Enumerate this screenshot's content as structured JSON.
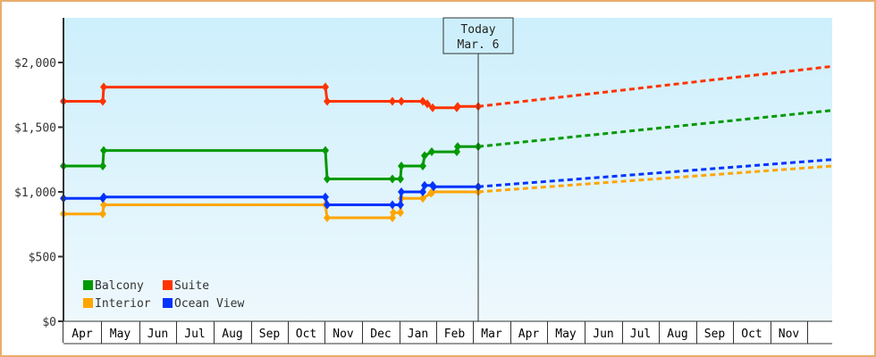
{
  "chart_data": {
    "type": "line",
    "title": "",
    "xlabel": "",
    "ylabel": "",
    "ylim": [
      0,
      2350
    ],
    "yticks": [
      {
        "value": 0,
        "label": "$0"
      },
      {
        "value": 500,
        "label": "$500"
      },
      {
        "value": 1000,
        "label": "$1,000"
      },
      {
        "value": 1500,
        "label": "$1,500"
      },
      {
        "value": 2000,
        "label": "$2,000"
      }
    ],
    "x_months": [
      "Apr",
      "May",
      "Jun",
      "Jul",
      "Aug",
      "Sep",
      "Oct",
      "Nov",
      "Dec",
      "Jan",
      "Feb",
      "Mar",
      "Apr",
      "May",
      "Jun",
      "Jul",
      "Aug",
      "Sep",
      "Oct",
      "Nov",
      ""
    ],
    "grid": false,
    "legend_position": "bottom-left inside",
    "today_marker": {
      "line1": "Today",
      "line2": "Mar. 6"
    },
    "series": [
      {
        "name": "Balcony",
        "color": "#009900",
        "history_step": [
          {
            "x": 71,
            "value": 1200
          },
          {
            "x": 115,
            "value": 1200
          },
          {
            "x": 116,
            "value": 1320
          },
          {
            "x": 364,
            "value": 1320
          },
          {
            "x": 366,
            "value": 1100
          },
          {
            "x": 439,
            "value": 1100
          },
          {
            "x": 448,
            "value": 1100
          },
          {
            "x": 449,
            "value": 1200
          },
          {
            "x": 473,
            "value": 1200
          },
          {
            "x": 475,
            "value": 1280
          },
          {
            "x": 483,
            "value": 1310
          },
          {
            "x": 511,
            "value": 1310
          },
          {
            "x": 512,
            "value": 1350
          },
          {
            "x": 535,
            "value": 1350
          }
        ],
        "forecast": [
          {
            "x": 535,
            "value": 1350
          },
          {
            "x": 931,
            "value": 1630
          }
        ]
      },
      {
        "name": "Suite",
        "color": "#ff3300",
        "history_step": [
          {
            "x": 71,
            "value": 1700
          },
          {
            "x": 115,
            "value": 1700
          },
          {
            "x": 116,
            "value": 1810
          },
          {
            "x": 364,
            "value": 1810
          },
          {
            "x": 366,
            "value": 1700
          },
          {
            "x": 439,
            "value": 1700
          },
          {
            "x": 449,
            "value": 1700
          },
          {
            "x": 473,
            "value": 1700
          },
          {
            "x": 478,
            "value": 1680
          },
          {
            "x": 484,
            "value": 1650
          },
          {
            "x": 511,
            "value": 1650
          },
          {
            "x": 512,
            "value": 1660
          },
          {
            "x": 535,
            "value": 1660
          }
        ],
        "forecast": [
          {
            "x": 535,
            "value": 1660
          },
          {
            "x": 931,
            "value": 1970
          }
        ]
      },
      {
        "name": "Interior",
        "color": "#ffa500",
        "history_step": [
          {
            "x": 71,
            "value": 830
          },
          {
            "x": 115,
            "value": 830
          },
          {
            "x": 116,
            "value": 900
          },
          {
            "x": 364,
            "value": 900
          },
          {
            "x": 366,
            "value": 800
          },
          {
            "x": 439,
            "value": 800
          },
          {
            "x": 440,
            "value": 840
          },
          {
            "x": 448,
            "value": 840
          },
          {
            "x": 449,
            "value": 950
          },
          {
            "x": 473,
            "value": 950
          },
          {
            "x": 482,
            "value": 990
          },
          {
            "x": 484,
            "value": 1000
          },
          {
            "x": 535,
            "value": 1000
          }
        ],
        "forecast": [
          {
            "x": 535,
            "value": 1000
          },
          {
            "x": 931,
            "value": 1200
          }
        ]
      },
      {
        "name": "Ocean View",
        "color": "#0033ff",
        "history_step": [
          {
            "x": 71,
            "value": 950
          },
          {
            "x": 115,
            "value": 950
          },
          {
            "x": 116,
            "value": 960
          },
          {
            "x": 364,
            "value": 960
          },
          {
            "x": 366,
            "value": 900
          },
          {
            "x": 439,
            "value": 900
          },
          {
            "x": 448,
            "value": 900
          },
          {
            "x": 449,
            "value": 1000
          },
          {
            "x": 473,
            "value": 1000
          },
          {
            "x": 475,
            "value": 1050
          },
          {
            "x": 484,
            "value": 1050
          },
          {
            "x": 485,
            "value": 1040
          },
          {
            "x": 535,
            "value": 1040
          }
        ],
        "forecast": [
          {
            "x": 535,
            "value": 1040
          },
          {
            "x": 931,
            "value": 1250
          }
        ]
      }
    ]
  },
  "legend": [
    {
      "name": "Balcony",
      "color": "#009900"
    },
    {
      "name": "Suite",
      "color": "#ff3300"
    },
    {
      "name": "Interior",
      "color": "#ffa500"
    },
    {
      "name": "Ocean View",
      "color": "#0033ff"
    }
  ]
}
